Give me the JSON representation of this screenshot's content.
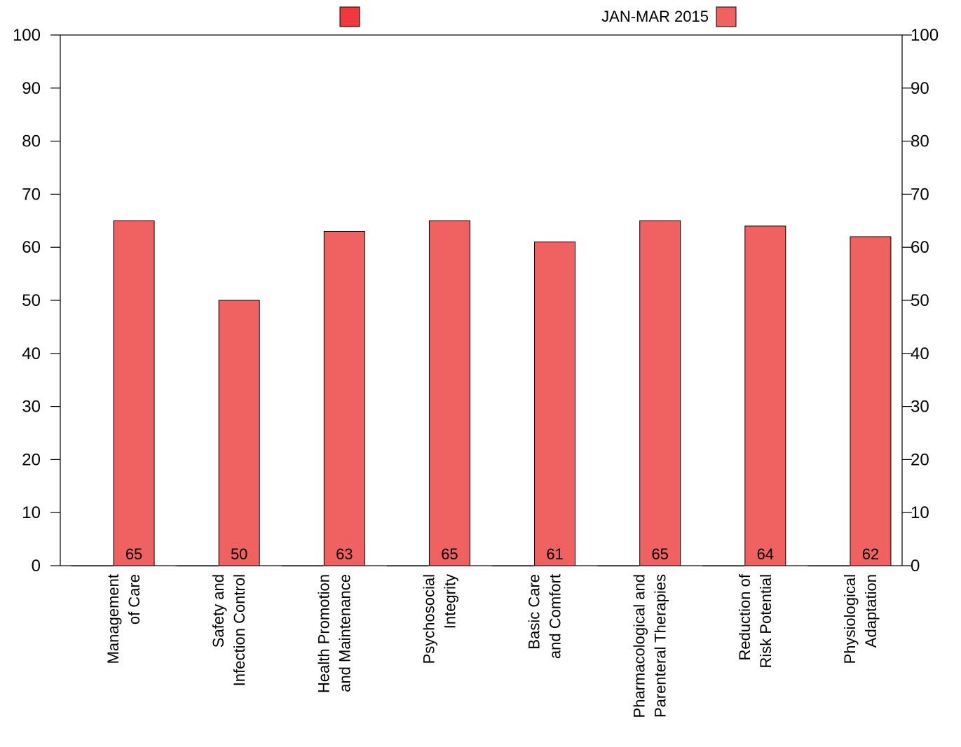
{
  "chart_data": {
    "type": "bar",
    "categories": [
      [
        "Management",
        "of Care"
      ],
      [
        "Safety and",
        "Infection Control"
      ],
      [
        "Health Promotion",
        "and Maintenance"
      ],
      [
        "Psychosocial",
        "Integrity"
      ],
      [
        "Basic Care",
        "and Comfort"
      ],
      [
        "Pharmacological and",
        "Parenteral Therapies"
      ],
      [
        "Reduction of",
        "Risk Potential"
      ],
      [
        "Physiological",
        "Adaptation"
      ]
    ],
    "series": [
      {
        "name": "",
        "color": "#f0393e",
        "values": [
          0,
          0,
          0,
          0,
          0,
          0,
          0,
          0
        ]
      },
      {
        "name": "JAN-MAR 2015",
        "color": "#f06262",
        "values": [
          65,
          50,
          63,
          65,
          61,
          65,
          64,
          62
        ]
      }
    ],
    "data_labels": [
      "65",
      "50",
      "63",
      "65",
      "61",
      "65",
      "64",
      "62"
    ],
    "ylim": [
      0,
      100
    ],
    "yticks": [
      0,
      10,
      20,
      30,
      40,
      50,
      60,
      70,
      80,
      90,
      100
    ],
    "title": "",
    "xlabel": "",
    "ylabel": "",
    "grid": false,
    "legend_position": "top"
  }
}
